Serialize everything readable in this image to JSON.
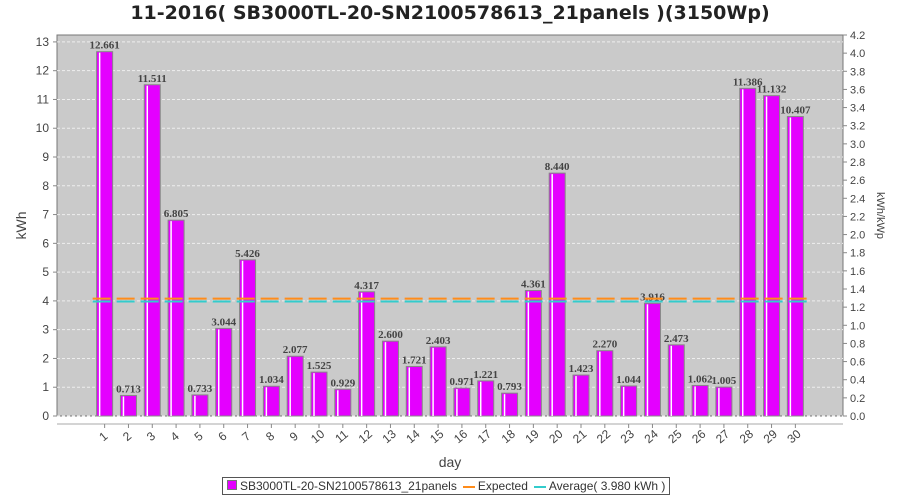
{
  "chart_data": {
    "type": "bar",
    "title": "11-2016( SB3000TL-20-SN2100578613_21panels )(3150Wp)",
    "xlabel": "day",
    "ylabel": "kWh",
    "y2label": "kWh/kWp",
    "ylim": [
      0,
      13.24
    ],
    "y2lim": [
      0,
      4.2
    ],
    "yticks": [
      0,
      1,
      2,
      3,
      4,
      5,
      6,
      7,
      8,
      9,
      10,
      11,
      12,
      13
    ],
    "y2ticks": [
      "0.0",
      "0.2",
      "0.4",
      "0.6",
      "0.8",
      "1.0",
      "1.2",
      "1.4",
      "1.6",
      "1.8",
      "2.0",
      "2.2",
      "2.4",
      "2.6",
      "2.8",
      "3.0",
      "3.2",
      "3.4",
      "3.6",
      "3.8",
      "4.0",
      "4.2"
    ],
    "categories": [
      "1",
      "2",
      "3",
      "4",
      "5",
      "6",
      "7",
      "8",
      "9",
      "10",
      "11",
      "12",
      "13",
      "14",
      "15",
      "16",
      "17",
      "18",
      "19",
      "20",
      "21",
      "22",
      "23",
      "24",
      "25",
      "26",
      "27",
      "28",
      "29",
      "30"
    ],
    "series": [
      {
        "name": "SB3000TL-20-SN2100578613_21panels",
        "color": "#e400ff",
        "values": [
          12.661,
          0.713,
          11.511,
          6.805,
          0.733,
          3.044,
          5.426,
          1.034,
          2.077,
          1.525,
          0.929,
          4.317,
          2.6,
          1.721,
          2.403,
          0.971,
          1.221,
          0.793,
          4.361,
          8.44,
          1.423,
          2.27,
          1.044,
          3.916,
          2.473,
          1.062,
          1.005,
          11.386,
          11.132,
          10.407
        ],
        "labels": [
          "12.661",
          "0.713",
          "11.511",
          "6.805",
          "0.733",
          "3.044",
          "5.426",
          "1.034",
          "2.077",
          "1.525",
          "0.929",
          "4.317",
          "2.600",
          "1.721",
          "2.403",
          "0.971",
          "1.221",
          "0.793",
          "4.361",
          "8.440",
          "1.423",
          "2.270",
          "1.044",
          "3.916",
          "2.473",
          "1.062",
          "1.005",
          "11.386",
          "11.132",
          "10.407"
        ]
      }
    ],
    "lines": [
      {
        "name": "Expected",
        "value": 4.08,
        "color": "#ff8c1a"
      },
      {
        "name": "Average( 3.980 kWh )",
        "value": 3.98,
        "color": "#33cccc"
      }
    ],
    "grid": true,
    "legend": "bottom"
  }
}
